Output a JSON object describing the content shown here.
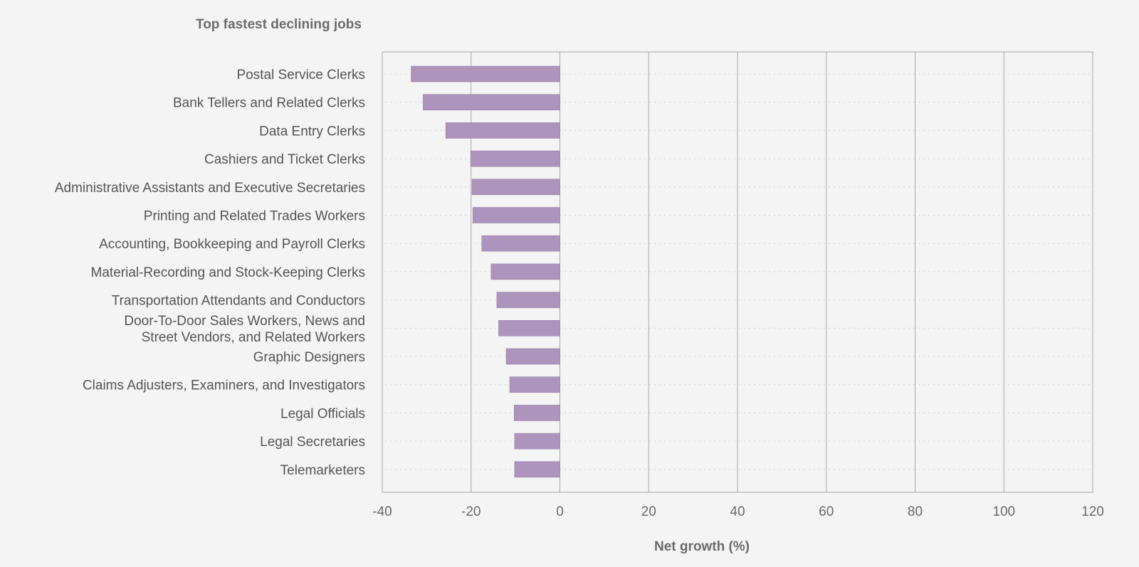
{
  "chart_data": {
    "type": "bar",
    "orientation": "horizontal",
    "title": "Top fastest declining jobs",
    "xlabel": "Net growth (%)",
    "ylabel": "",
    "xlim": [
      -40,
      120
    ],
    "xticks": [
      -40,
      -20,
      0,
      20,
      40,
      60,
      80,
      100,
      120
    ],
    "grid": "vertical",
    "bar_color": "#ad94bc",
    "categories": [
      "Postal Service Clerks",
      "Bank Tellers and Related Clerks",
      "Data Entry Clerks",
      "Cashiers and Ticket Clerks",
      "Administrative Assistants and Executive Secretaries",
      "Printing and Related Trades Workers",
      "Accounting, Bookkeeping and Payroll Clerks",
      "Material-Recording and Stock-Keeping Clerks",
      "Transportation Attendants and Conductors",
      "Door-To-Door Sales Workers, News and Street Vendors, and Related Workers",
      "Graphic Designers",
      "Claims Adjusters, Examiners, and Investigators",
      "Legal Officials",
      "Legal Secretaries",
      "Telemarketers"
    ],
    "category_lines": [
      [
        "Postal Service Clerks"
      ],
      [
        "Bank Tellers and Related Clerks"
      ],
      [
        "Data Entry Clerks"
      ],
      [
        "Cashiers and Ticket Clerks"
      ],
      [
        "Administrative Assistants and Executive Secretaries"
      ],
      [
        "Printing and Related Trades Workers"
      ],
      [
        "Accounting, Bookkeeping and Payroll Clerks"
      ],
      [
        "Material-Recording and Stock-Keeping Clerks"
      ],
      [
        "Transportation Attendants and Conductors"
      ],
      [
        "Door-To-Door Sales Workers, News and",
        "Street Vendors, and Related Workers"
      ],
      [
        "Graphic Designers"
      ],
      [
        "Claims Adjusters, Examiners, and Investigators"
      ],
      [
        "Legal Officials"
      ],
      [
        "Legal Secretaries"
      ],
      [
        "Telemarketers"
      ]
    ],
    "values": [
      -33.5,
      -30.8,
      -25.7,
      -20.1,
      -19.8,
      -19.6,
      -17.6,
      -15.5,
      -14.2,
      -13.8,
      -12.1,
      -11.3,
      -10.3,
      -10.2,
      -10.2
    ]
  }
}
